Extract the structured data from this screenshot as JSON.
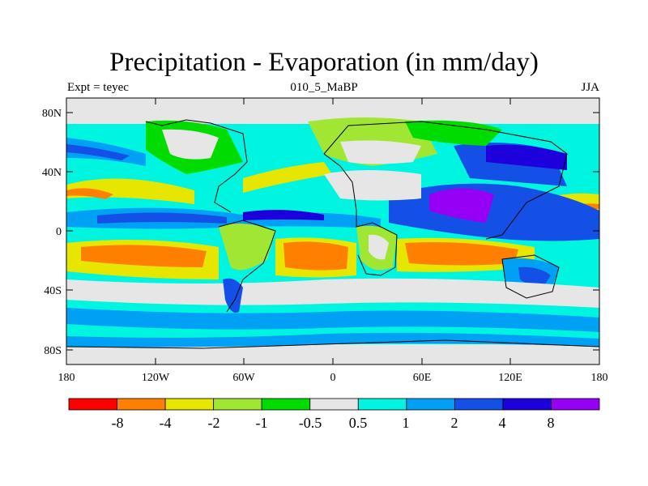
{
  "plot": {
    "title": "Precipitation - Evaporation (in mm/day)",
    "left_label": "Expt = teyec",
    "center_label": "010_5_MaBP",
    "right_label": "JJA",
    "lat_ticks": [
      "80N",
      "40N",
      "0",
      "40S",
      "80S"
    ],
    "lon_ticks": [
      "180",
      "120W",
      "60W",
      "0",
      "60E",
      "120E",
      "180"
    ]
  },
  "colorbar": {
    "labels": [
      "-8",
      "-4",
      "-2",
      "-1",
      "-0.5",
      "0.5",
      "1",
      "2",
      "4",
      "8"
    ],
    "colors": [
      "#ff0000",
      "#ff8000",
      "#e6e600",
      "#a0e632",
      "#00dc00",
      "#e6e6e6",
      "#00f5e1",
      "#00a0f5",
      "#1450e6",
      "#1e00dc",
      "#9600f5"
    ]
  },
  "colors": {
    "land_outline": "#000000",
    "background": "#ffffff"
  }
}
